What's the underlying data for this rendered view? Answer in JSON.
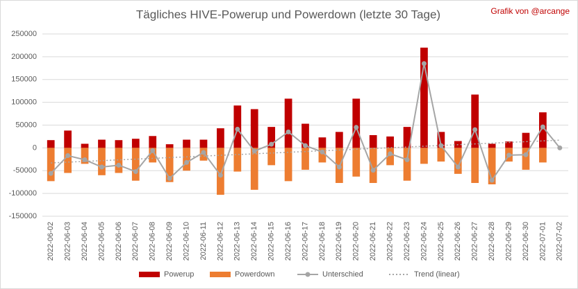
{
  "chart_data": {
    "type": "bar",
    "title": "Tägliches HIVE-Powerup und Powerdown (letzte 30 Tage)",
    "annotation": "Grafik von @arcange",
    "categories": [
      "2022-06-02",
      "2022-06-03",
      "2022-06-04",
      "2022-06-05",
      "2022-06-06",
      "2022-06-07",
      "2022-06-08",
      "2022-06-09",
      "2022-06-10",
      "2022-06-11",
      "2022-06-12",
      "2022-06-13",
      "2022-06-14",
      "2022-06-15",
      "2022-06-16",
      "2022-06-17",
      "2022-06-18",
      "2022-06-19",
      "2022-06-20",
      "2022-06-21",
      "2022-06-22",
      "2022-06-23",
      "2022-06-24",
      "2022-06-25",
      "2022-06-26",
      "2022-06-27",
      "2022-06-28",
      "2022-06-29",
      "2022-06-30",
      "2022-07-01",
      "2022-07-02"
    ],
    "series": [
      {
        "name": "Powerup",
        "type": "bar",
        "color": "#c00000",
        "values": [
          17000,
          38000,
          9000,
          18000,
          17000,
          20000,
          26000,
          8000,
          18000,
          18000,
          43000,
          93000,
          85000,
          46000,
          108000,
          53000,
          23000,
          35000,
          108000,
          28000,
          25000,
          46000,
          220000,
          35000,
          15000,
          117000,
          9000,
          14000,
          33000,
          78000,
          0
        ]
      },
      {
        "name": "Powerdown",
        "type": "bar",
        "color": "#ed7d31",
        "values": [
          -73000,
          -55000,
          -35000,
          -60000,
          -55000,
          -72000,
          -32000,
          -75000,
          -50000,
          -28000,
          -103000,
          -52000,
          -92000,
          -38000,
          -73000,
          -48000,
          -32000,
          -77000,
          -63000,
          -77000,
          -38000,
          -72000,
          -35000,
          -30000,
          -57000,
          -77000,
          -80000,
          -30000,
          -48000,
          -32000,
          0
        ]
      },
      {
        "name": "Unterschied",
        "type": "line",
        "color": "#a5a5a5",
        "marker": true,
        "dashed": false,
        "values": [
          -56000,
          -17000,
          -26000,
          -42000,
          -38000,
          -52000,
          -6000,
          -67000,
          -32000,
          -10000,
          -60000,
          41000,
          -7000,
          8000,
          35000,
          5000,
          -9000,
          -42000,
          45000,
          -49000,
          -13000,
          -26000,
          185000,
          5000,
          -42000,
          40000,
          -71000,
          -16000,
          -15000,
          46000,
          0
        ]
      },
      {
        "name": "Trend (linear)",
        "type": "line",
        "color": "#a5a5a5",
        "marker": false,
        "dashed": true,
        "values": [
          -33000,
          -31300,
          -29700,
          -28000,
          -26300,
          -24700,
          -23000,
          -21300,
          -19700,
          -18000,
          -16300,
          -14700,
          -13000,
          -11300,
          -9700,
          -8000,
          -6300,
          -4700,
          -3000,
          -1300,
          300,
          2000,
          3700,
          5300,
          7000,
          8700,
          10300,
          12000,
          13700,
          15300,
          17000
        ]
      }
    ],
    "ylim": [
      -150000,
      250000
    ],
    "yticks": [
      -150000,
      -100000,
      -50000,
      0,
      50000,
      100000,
      150000,
      200000,
      250000
    ],
    "grid": true,
    "legend": "bottom"
  }
}
